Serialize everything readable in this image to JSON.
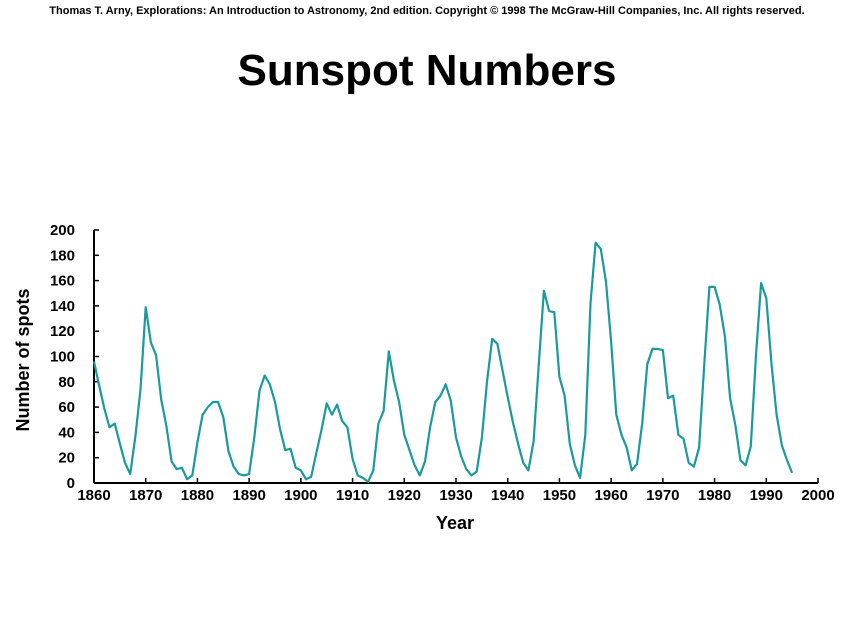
{
  "header": {
    "credit": "Thomas T. Arny, Explorations: An Introduction to Astronomy, 2nd edition. Copyright © 1998 The McGraw-Hill Companies, Inc. All rights reserved."
  },
  "chart_data": {
    "type": "line",
    "title": "Sunspot Numbers",
    "xlabel": "Year",
    "ylabel": "Number of spots",
    "xlim": [
      1860,
      2000
    ],
    "ylim": [
      0,
      200
    ],
    "x_ticks": [
      1860,
      1870,
      1880,
      1890,
      1900,
      1910,
      1920,
      1930,
      1940,
      1950,
      1960,
      1970,
      1980,
      1990,
      2000
    ],
    "y_ticks": [
      0,
      20,
      40,
      60,
      80,
      100,
      120,
      140,
      160,
      180,
      200
    ],
    "grid": false,
    "colors": {
      "line": "#1a9a9a",
      "axis": "#000000"
    },
    "series": [
      {
        "x": [
          1860,
          1861,
          1862,
          1863,
          1864,
          1865,
          1866,
          1867,
          1868,
          1869,
          1870,
          1871,
          1872,
          1873,
          1874,
          1875,
          1876,
          1877,
          1878,
          1879,
          1880,
          1881,
          1882,
          1883,
          1884,
          1885,
          1886,
          1887,
          1888,
          1889,
          1890,
          1891,
          1892,
          1893,
          1894,
          1895,
          1896,
          1897,
          1898,
          1899,
          1900,
          1901,
          1902,
          1903,
          1904,
          1905,
          1906,
          1907,
          1908,
          1909,
          1910,
          1911,
          1912,
          1913,
          1914,
          1915,
          1916,
          1917,
          1918,
          1919,
          1920,
          1921,
          1922,
          1923,
          1924,
          1925,
          1926,
          1927,
          1928,
          1929,
          1930,
          1931,
          1932,
          1933,
          1934,
          1935,
          1936,
          1937,
          1938,
          1939,
          1940,
          1941,
          1942,
          1943,
          1944,
          1945,
          1946,
          1947,
          1948,
          1949,
          1950,
          1951,
          1952,
          1953,
          1954,
          1955,
          1956,
          1957,
          1958,
          1959,
          1960,
          1961,
          1962,
          1963,
          1964,
          1965,
          1966,
          1967,
          1968,
          1969,
          1970,
          1971,
          1972,
          1973,
          1974,
          1975,
          1976,
          1977,
          1978,
          1979,
          1980,
          1981,
          1982,
          1983,
          1984,
          1985,
          1986,
          1987,
          1988,
          1989,
          1990,
          1991,
          1992,
          1993,
          1994,
          1995
        ],
        "values": [
          96,
          77,
          59,
          44,
          47,
          31,
          16,
          7,
          37,
          74,
          139,
          111,
          101,
          66,
          45,
          17,
          11,
          12,
          3,
          6,
          32,
          54,
          60,
          64,
          64,
          52,
          25,
          13,
          7,
          6,
          7,
          36,
          73,
          85,
          78,
          64,
          42,
          26,
          27,
          12,
          10,
          3,
          5,
          24,
          42,
          63,
          54,
          62,
          49,
          44,
          19,
          6,
          4,
          1,
          10,
          47,
          57,
          104,
          81,
          64,
          38,
          26,
          14,
          6,
          17,
          44,
          64,
          69,
          78,
          65,
          36,
          21,
          11,
          6,
          9,
          36,
          80,
          114,
          110,
          89,
          68,
          48,
          31,
          16,
          10,
          33,
          93,
          152,
          136,
          135,
          84,
          69,
          31,
          14,
          4,
          38,
          142,
          190,
          185,
          159,
          112,
          54,
          38,
          28,
          10,
          15,
          47,
          94,
          106,
          106,
          105,
          67,
          69,
          38,
          35,
          16,
          13,
          28,
          93,
          155,
          155,
          141,
          116,
          67,
          46,
          18,
          14,
          29,
          100,
          158,
          146,
          94,
          54,
          30,
          18,
          8
        ]
      }
    ]
  }
}
